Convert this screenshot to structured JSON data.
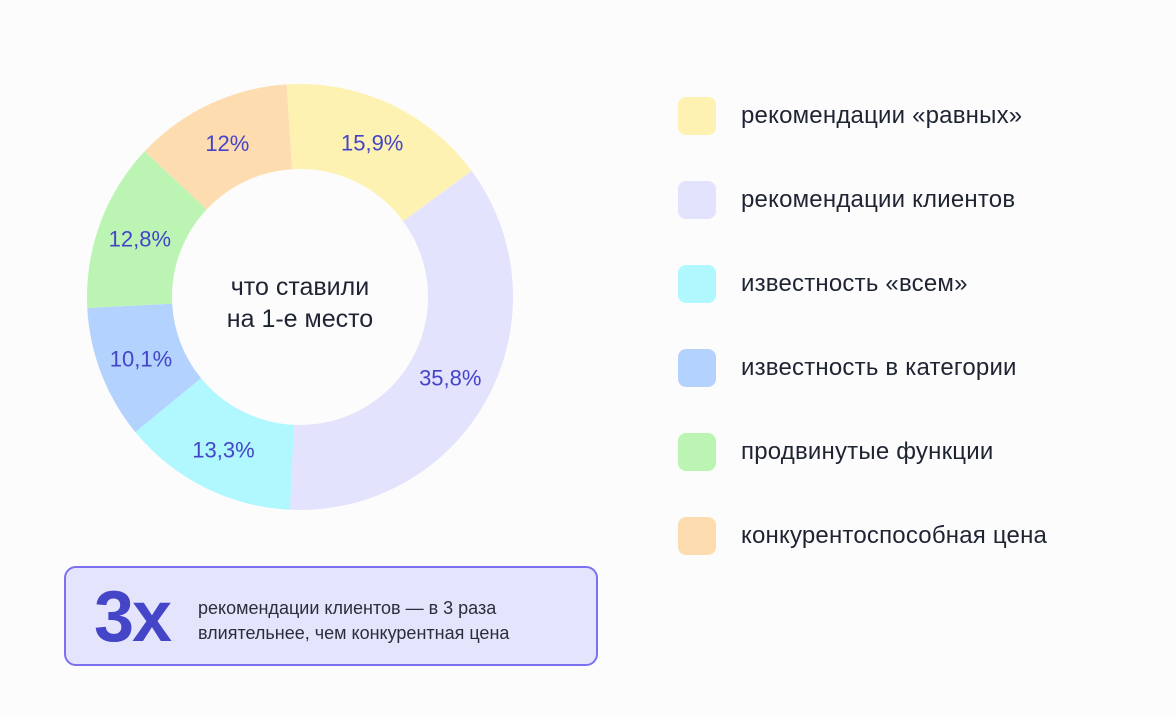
{
  "chart_data": {
    "type": "pie",
    "variant": "donut",
    "center_label": [
      "что ставили",
      "на 1-е место"
    ],
    "label_color": "#4444c8",
    "slices": [
      {
        "name": "рекомендации «равных»",
        "value": 15.9,
        "label": "15,9%",
        "color": "#fef2b3"
      },
      {
        "name": "рекомендации клиентов",
        "value": 35.8,
        "label": "35,8%",
        "color": "#e4e3fd"
      },
      {
        "name": "известность «всем»",
        "value": 13.3,
        "label": "13,3%",
        "color": "#b0f8fe"
      },
      {
        "name": "известность в категории",
        "value": 10.1,
        "label": "10,1%",
        "color": "#b3d3fe"
      },
      {
        "name": "продвинутые функции",
        "value": 12.8,
        "label": "12,8%",
        "color": "#bcf5b3"
      },
      {
        "name": "конкурентоспособная цена",
        "value": 12,
        "label": "12%",
        "color": "#fdddb0"
      }
    ],
    "legend_position": "right"
  },
  "callout": {
    "big": "3x",
    "line1": "рекомендации клиентов — в 3 раза",
    "line2": "влиятельнее, чем конкурентная цена"
  }
}
